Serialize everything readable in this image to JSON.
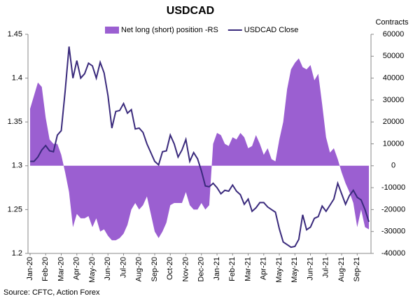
{
  "chart_data": {
    "type": "combo",
    "title": "USDCAD",
    "y2label": "Contracts",
    "source": "Source: CFTC, Action Forex",
    "categories": [
      "Jan-20",
      null,
      null,
      null,
      "Feb-20",
      null,
      null,
      null,
      "Mar-20",
      null,
      null,
      null,
      "Apr-20",
      null,
      null,
      null,
      "May-20",
      null,
      null,
      null,
      "Jun-20",
      null,
      null,
      null,
      "Jul-20",
      null,
      null,
      null,
      "Aug-20",
      null,
      null,
      null,
      "Sep-20",
      null,
      null,
      null,
      "Oct-20",
      null,
      null,
      null,
      "Nov-20",
      null,
      null,
      null,
      "Dec-20",
      null,
      null,
      null,
      "Jan-21",
      null,
      null,
      null,
      "Feb-21",
      null,
      null,
      null,
      "Mar-21",
      null,
      null,
      null,
      "Apr-21",
      null,
      null,
      null,
      "May-21",
      null,
      null,
      null,
      "May-21",
      null,
      null,
      null,
      "Jun-21",
      null,
      null,
      null,
      "Jul-21",
      null,
      null,
      null,
      "Aug-21",
      null,
      null,
      null,
      "Sep-21",
      null,
      null,
      null
    ],
    "series": [
      {
        "name": "Net long (short) position -RS",
        "type": "area",
        "axis": "y2",
        "color": "#9b5fd1",
        "values": [
          26000,
          32000,
          38000,
          36000,
          22000,
          12000,
          10000,
          10000,
          5000,
          -3000,
          -12000,
          -28000,
          -22000,
          -24000,
          -24000,
          -23000,
          -28000,
          -24000,
          -30000,
          -29000,
          -32000,
          -34000,
          -34000,
          -33000,
          -31000,
          -27000,
          -20000,
          -17000,
          -20000,
          -18000,
          -14000,
          -22000,
          -30000,
          -33000,
          -30000,
          -26000,
          -18000,
          -17000,
          -17000,
          -17000,
          -12000,
          -18000,
          -20000,
          -20000,
          -17000,
          -20000,
          -18000,
          10000,
          15000,
          14000,
          10000,
          9000,
          13000,
          12000,
          15000,
          13000,
          8000,
          9000,
          14000,
          10000,
          5000,
          8000,
          3000,
          2000,
          12000,
          20000,
          35000,
          44000,
          47000,
          49000,
          45000,
          44000,
          46000,
          39000,
          42000,
          28000,
          13000,
          6000,
          8000,
          3000,
          -3000,
          -8000,
          -12000,
          -17000,
          -28000,
          -20000,
          -28000,
          -29000
        ]
      },
      {
        "name": "USDCAD Close",
        "type": "line",
        "color": "#3a2a7c",
        "values": [
          1.305,
          1.305,
          1.31,
          1.318,
          1.323,
          1.317,
          1.316,
          1.335,
          1.34,
          1.385,
          1.436,
          1.4,
          1.42,
          1.4,
          1.405,
          1.417,
          1.414,
          1.4,
          1.418,
          1.406,
          1.38,
          1.343,
          1.362,
          1.363,
          1.371,
          1.36,
          1.364,
          1.342,
          1.343,
          1.338,
          1.325,
          1.315,
          1.305,
          1.301,
          1.316,
          1.317,
          1.335,
          1.325,
          1.31,
          1.318,
          1.33,
          1.305,
          1.315,
          1.308,
          1.294,
          1.277,
          1.276,
          1.28,
          1.275,
          1.268,
          1.272,
          1.271,
          1.278,
          1.271,
          1.267,
          1.256,
          1.262,
          1.248,
          1.252,
          1.258,
          1.258,
          1.253,
          1.25,
          1.247,
          1.228,
          1.213,
          1.21,
          1.207,
          1.208,
          1.216,
          1.244,
          1.227,
          1.23,
          1.24,
          1.242,
          1.254,
          1.248,
          1.255,
          1.262,
          1.28,
          1.268,
          1.256,
          1.266,
          1.272,
          1.264,
          1.261,
          1.25,
          1.236
        ]
      }
    ],
    "ylim": [
      1.2,
      1.45
    ],
    "yticks": [
      1.2,
      1.25,
      1.3,
      1.35,
      1.4,
      1.45
    ],
    "y2lim": [
      -40000,
      60000
    ],
    "y2ticks": [
      -40000,
      -30000,
      -20000,
      -10000,
      0,
      10000,
      20000,
      30000,
      40000,
      50000,
      60000
    ]
  }
}
